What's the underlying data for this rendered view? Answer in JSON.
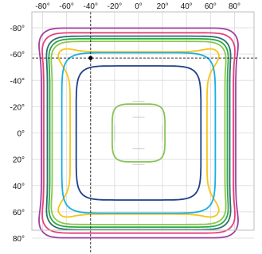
{
  "chart_data": {
    "type": "contour",
    "title": "",
    "xlabel": "",
    "ylabel": "",
    "x_ticks": [
      "-80°",
      "-60°",
      "-40°",
      "-20°",
      "0°",
      "20°",
      "40°",
      "60°",
      "80°"
    ],
    "y_ticks": [
      "-80°",
      "-60°",
      "-40°",
      "-20°",
      "0°",
      "20°",
      "40°",
      "60°",
      "80°"
    ],
    "x_tick_values": [
      -80,
      -60,
      -40,
      -20,
      0,
      20,
      40,
      60,
      80
    ],
    "y_tick_values": [
      -80,
      -60,
      -40,
      -20,
      0,
      20,
      40,
      60,
      80
    ],
    "xlim": [
      -90,
      90
    ],
    "ylim": [
      -90,
      90
    ],
    "y_axis_direction": "top-to-bottom increasing",
    "grid": true,
    "marker": {
      "x": -40,
      "y": -57
    },
    "crosshair_lines": [
      "vertical at x=-40",
      "horizontal at y=-57"
    ],
    "contours": [
      {
        "color": "#a040a0",
        "half_width": 86,
        "half_height": 82,
        "squareness": 0.86,
        "waist": 5
      },
      {
        "color": "#e8407a",
        "half_width": 83,
        "half_height": 78,
        "squareness": 0.85,
        "waist": 4
      },
      {
        "color": "#2e6e6e",
        "half_width": 79,
        "half_height": 75,
        "squareness": 0.85,
        "waist": 3
      },
      {
        "color": "#29a845",
        "half_width": 77,
        "half_height": 73,
        "squareness": 0.85,
        "waist": 3
      },
      {
        "color": "#8ac84a",
        "half_width": 75,
        "half_height": 71,
        "squareness": 0.85,
        "waist": 3
      },
      {
        "color": "#f5c518",
        "half_width": 71,
        "half_height": 68,
        "squareness": 0.82,
        "waist": 14
      },
      {
        "color": "#19aee0",
        "half_width": 64,
        "half_height": 61,
        "squareness": 0.76,
        "waist": 0
      },
      {
        "color": "#1f3f8a",
        "half_width": 52,
        "half_height": 51,
        "squareness": 0.65,
        "waist": 0
      },
      {
        "color": "#88c458",
        "half_width": 22,
        "half_height": 22,
        "squareness": 0.35,
        "waist": 0
      }
    ],
    "bottom_caption": ""
  }
}
